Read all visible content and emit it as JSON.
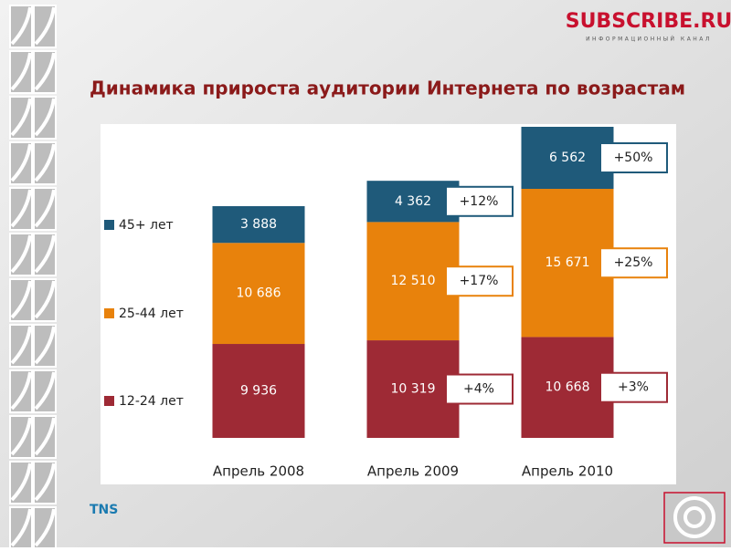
{
  "header": {
    "logo": "SUBSCRIBE.RU",
    "tagline": "ИНФОРМАЦИОННЫЙ КАНАЛ"
  },
  "chart_data": {
    "type": "stacked-bar",
    "title": "Динамика прироста аудитории Интернета по возрастам",
    "categories": [
      "Апрель 2008",
      "Апрель 2009",
      "Апрель 2010"
    ],
    "series": [
      {
        "name": "12-24 лет",
        "color": "#9e2a35",
        "values": [
          9936,
          10319,
          10668
        ],
        "value_labels": [
          "9 936",
          "10 319",
          "10 668"
        ],
        "growth_labels": [
          null,
          "+4%",
          "+3%"
        ]
      },
      {
        "name": "25-44 лет",
        "color": "#e8820c",
        "values": [
          10686,
          12510,
          15671
        ],
        "value_labels": [
          "10 686",
          "12 510",
          "15 671"
        ],
        "growth_labels": [
          null,
          "+17%",
          "+25%"
        ]
      },
      {
        "name": "45+ лет",
        "color": "#1f5a7a",
        "values": [
          3888,
          4362,
          6562
        ],
        "value_labels": [
          "3 888",
          "4 362",
          "6 562"
        ],
        "growth_labels": [
          null,
          "+12%",
          "+50%"
        ]
      }
    ]
  },
  "footer": {
    "source": "TNS"
  }
}
